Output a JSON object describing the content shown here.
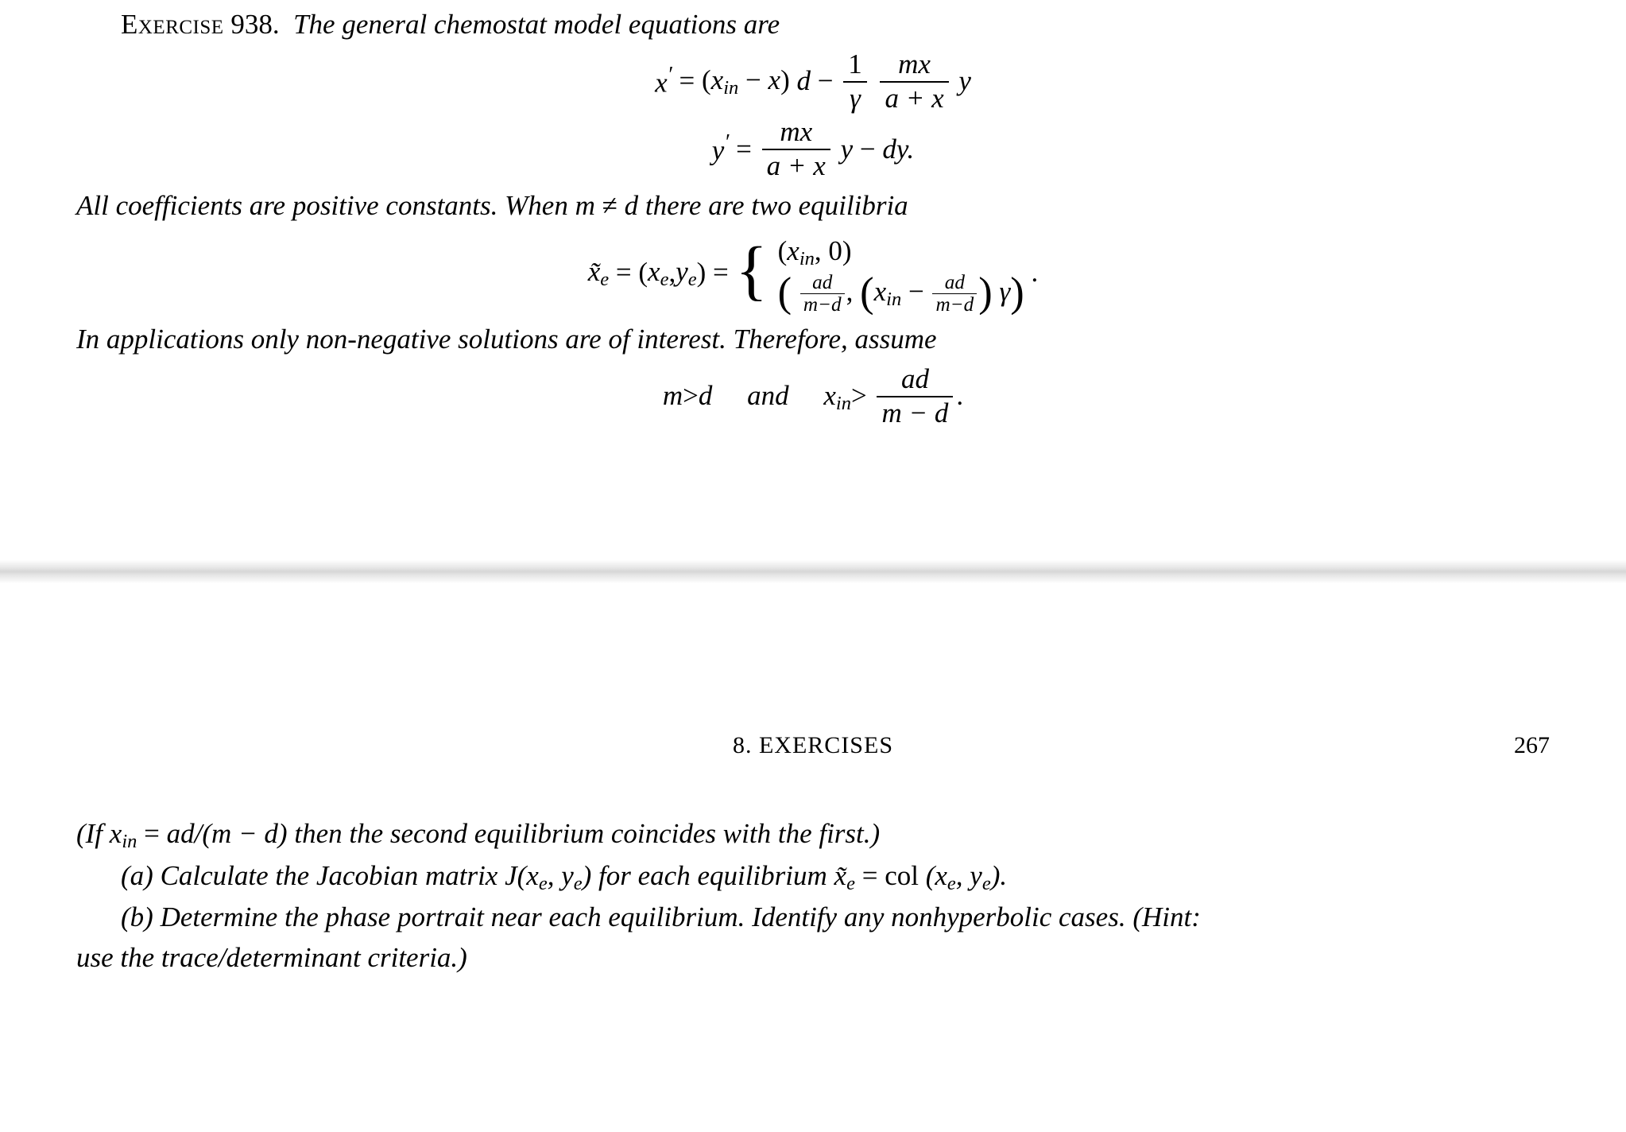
{
  "top": {
    "leadin_sc": "Exercise",
    "leadin_num": "938.",
    "intro_text": "The general chemostat model equations are",
    "after_eq_text_1": "All coefficients are positive constants.  When ",
    "after_eq_m": "m",
    "after_eq_neq": " ≠ ",
    "after_eq_d": "d",
    "after_eq_text_2": " there are two equilibria",
    "eq1": {
      "lhs_var": "x",
      "lhs_prime": "′",
      "eq": " = ",
      "xin": "x",
      "xin_sub": "in",
      "minus": " − ",
      "x2": "x",
      "d": "d",
      "m": " − ",
      "one": "1",
      "gamma": "γ",
      "mnum": "mx",
      "den": "a + x",
      "y": "y"
    },
    "eq2": {
      "lhs_var": "y",
      "lhs_prime": "′",
      "eq": " = ",
      "mnum": "mx",
      "den": "a + x",
      "y": "y",
      "minus": " − ",
      "dy": "dy."
    },
    "equil": {
      "lhs_x": "x̃",
      "lhs_sub": "e",
      "eq1": " = (",
      "xe": "x",
      "xe_sub": "e",
      "comma1": ", ",
      "ye": "y",
      "ye_sub": "e",
      "rp1": ")",
      "eq2": " = ",
      "row1_l": "(",
      "row1_x": "x",
      "row1_sub": "in",
      "row1_c": ", 0",
      "row1_r": ")",
      "row2_ad": "ad",
      "row2_md": "m−d",
      "row2_xin": "x",
      "row2_xin_sub": "in",
      "row2_minus": " − ",
      "row2_gamma": "γ",
      "dot": " ."
    },
    "apps_text": "In applications only non-negative solutions are of interest.  Therefore, assume",
    "assume": {
      "m": "m",
      "gt": " > ",
      "d": "d",
      "and": "and",
      "xin": "x",
      "xin_sub": "in",
      "gt2": " > ",
      "ad": "ad",
      "md": "m − d",
      "dot": "."
    }
  },
  "header": {
    "center": "8.  EXERCISES",
    "page_num": "267"
  },
  "bottom": {
    "line1_a": "(If ",
    "line1_x": "x",
    "line1_sub": "in",
    "line1_eq": " = ",
    "line1_expr": "ad/(m − d)",
    "line1_b": " then the second equilibrium coincides with the first.)",
    "a_label": "(a)",
    "a_text_1": " Calculate the Jacobian matrix J",
    "a_lp": "(",
    "a_xe": "x",
    "a_xe_s": "e",
    "a_c": ", ",
    "a_ye": "y",
    "a_ye_s": "e",
    "a_rp": ")",
    "a_text_2": " for each equilibrium ",
    "a_xt": "x̃",
    "a_xt_s": "e",
    "a_eq": " = ",
    "a_col": "col",
    "a_lp2": " (",
    "a_rp2": ").",
    "b_label": "(b)",
    "b_text_1": " Determine the phase portrait near each equilibrium.  Identify any nonhyperbolic cases.  (Hint:",
    "b_text_2": "use the trace/determinant criteria.)"
  }
}
